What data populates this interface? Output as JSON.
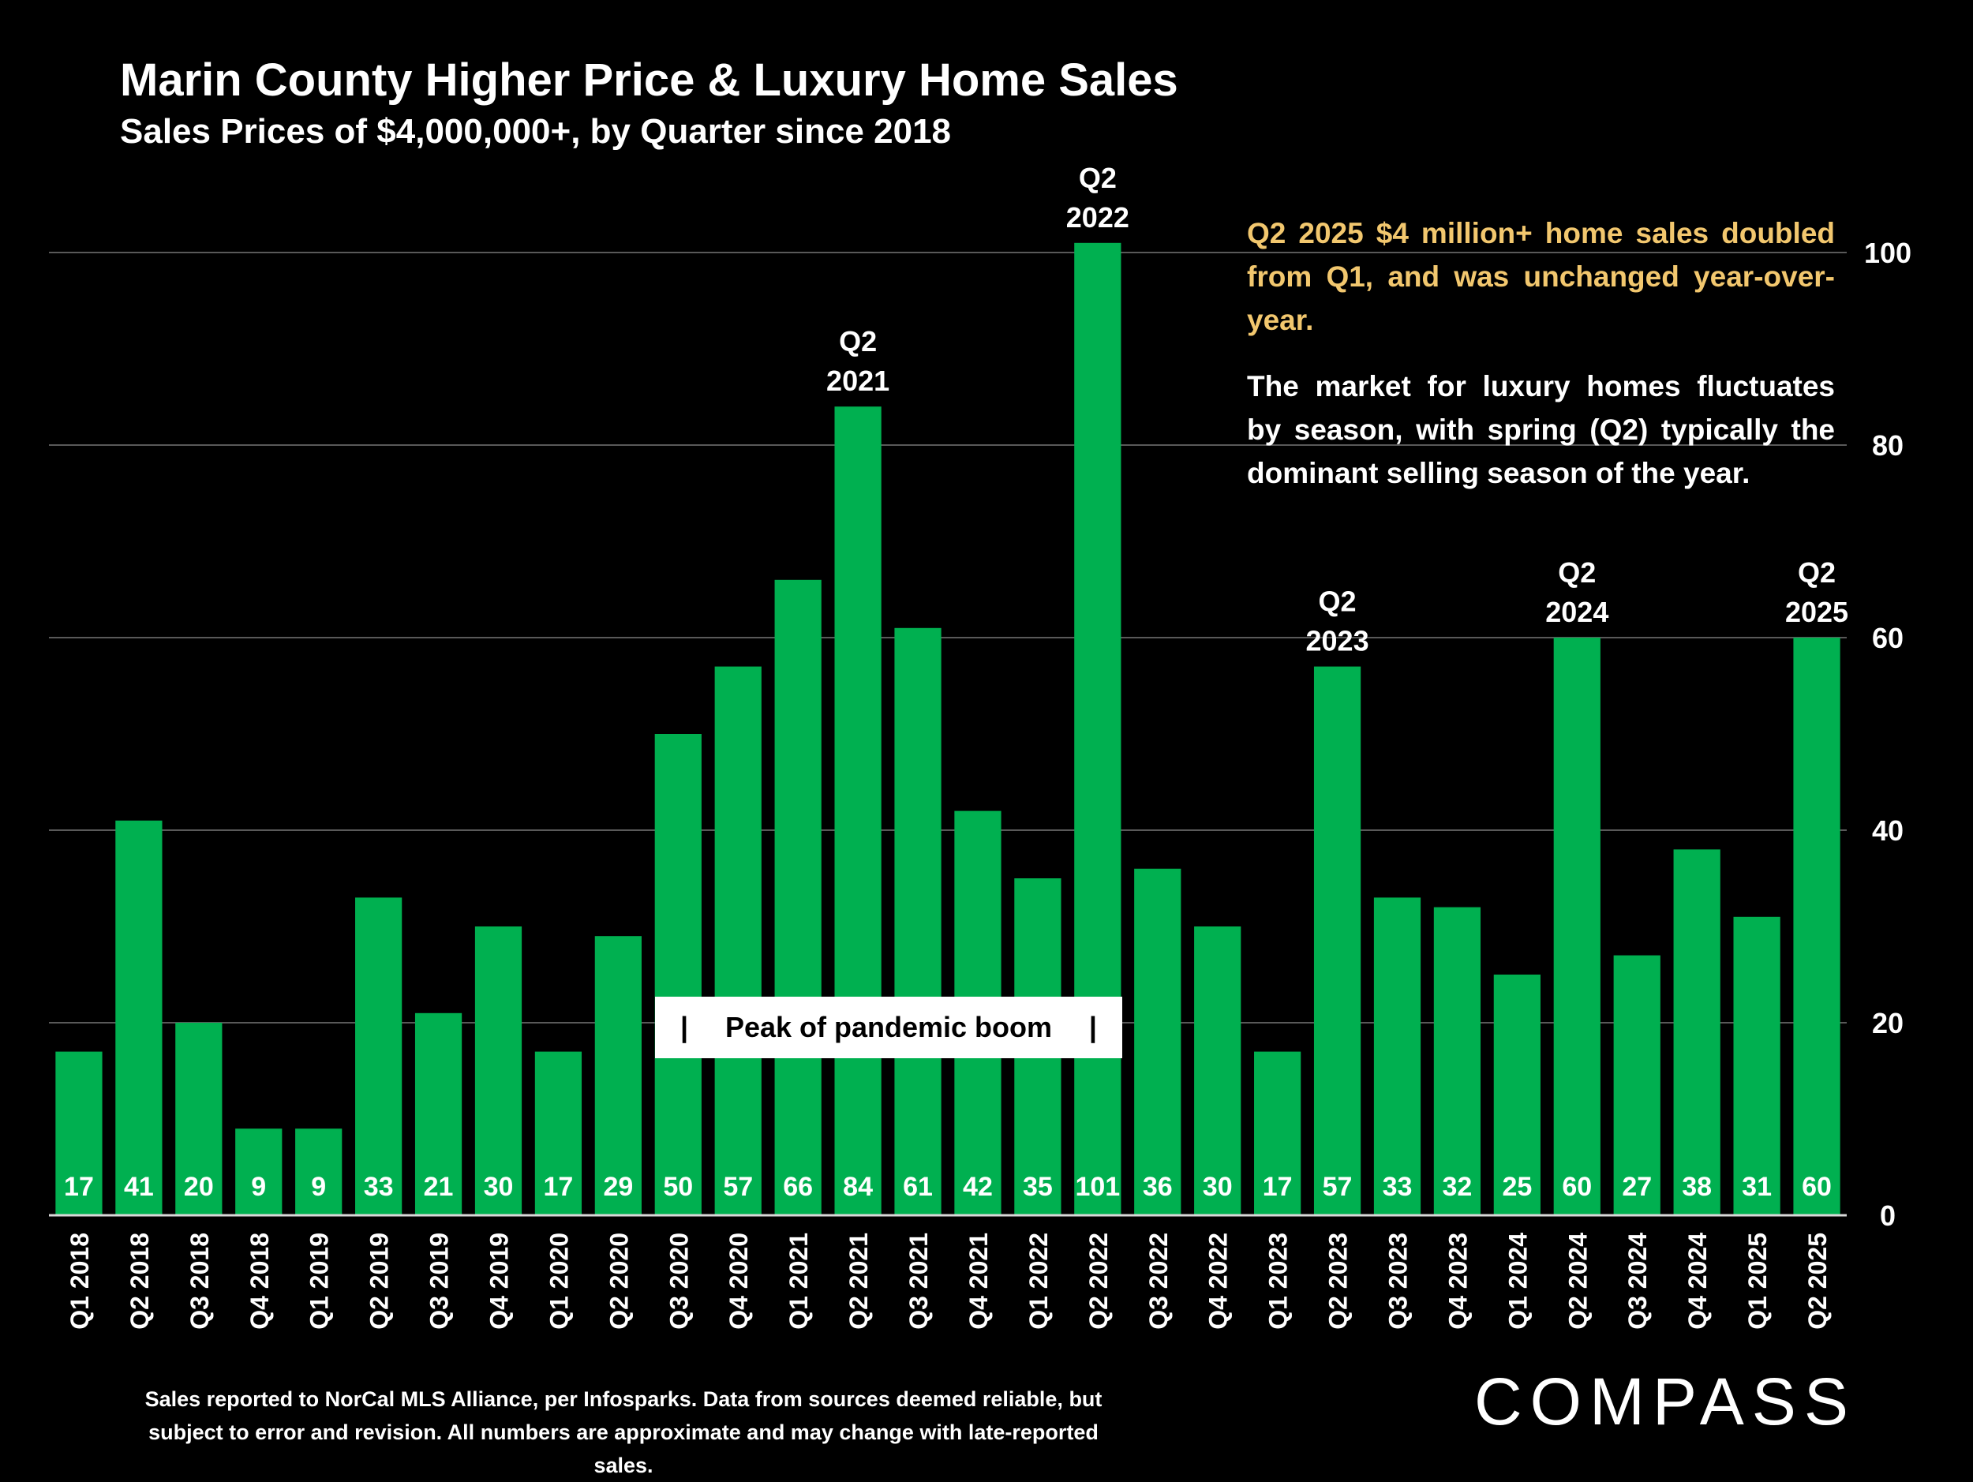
{
  "chart_data": {
    "type": "bar",
    "title": "Marin County Higher Price & Luxury Home Sales",
    "subtitle": "Sales Prices of $4,000,000+, by Quarter since 2018",
    "categories": [
      "Q1 2018",
      "Q2 2018",
      "Q3 2018",
      "Q4 2018",
      "Q1 2019",
      "Q2 2019",
      "Q3 2019",
      "Q4 2019",
      "Q1 2020",
      "Q2 2020",
      "Q3 2020",
      "Q4 2020",
      "Q1 2021",
      "Q2 2021",
      "Q3 2021",
      "Q4 2021",
      "Q1 2022",
      "Q2 2022",
      "Q3 2022",
      "Q4 2022",
      "Q1 2023",
      "Q2 2023",
      "Q3 2023",
      "Q4 2023",
      "Q1 2024",
      "Q2 2024",
      "Q3 2024",
      "Q4 2024",
      "Q1 2025",
      "Q2 2025"
    ],
    "values": [
      17,
      41,
      20,
      9,
      9,
      33,
      21,
      30,
      17,
      29,
      50,
      57,
      66,
      84,
      61,
      42,
      35,
      101,
      36,
      30,
      17,
      57,
      33,
      32,
      25,
      60,
      27,
      38,
      31,
      60
    ],
    "ylim": [
      0,
      105
    ],
    "yticks": [
      0,
      20,
      40,
      60,
      80,
      100
    ],
    "y_axis_side": "right",
    "grid": true,
    "bar_color": "#00b050",
    "label_color": "#ffffff",
    "highlights": [
      {
        "category": "Q2 2021",
        "line1": "Q2",
        "line2": "2021"
      },
      {
        "category": "Q2 2022",
        "line1": "Q2",
        "line2": "2022"
      },
      {
        "category": "Q2 2023",
        "line1": "Q2",
        "line2": "2023"
      },
      {
        "category": "Q2 2024",
        "line1": "Q2",
        "line2": "2024"
      },
      {
        "category": "Q2 2025",
        "line1": "Q2",
        "line2": "2025"
      }
    ],
    "annotation": {
      "text": "Peak of pandemic boom",
      "left_mark": "|",
      "right_mark": "|"
    }
  },
  "callouts": {
    "highlight": "Q2 2025 $4 million+ home sales doubled from Q1, and was unchanged year-over-year.",
    "body": "The market for luxury homes fluctuates by season, with spring (Q2) typically the dominant selling season of the year."
  },
  "colors": {
    "highlight_text": "#f2c76e",
    "background": "#000000",
    "gridline": "#595959"
  },
  "footnote": "Sales reported to NorCal MLS Alliance, per Infosparks. Data from sources deemed reliable, but subject to error and revision. All numbers are approximate and may change with late-reported sales.",
  "logo": "COMPASS"
}
